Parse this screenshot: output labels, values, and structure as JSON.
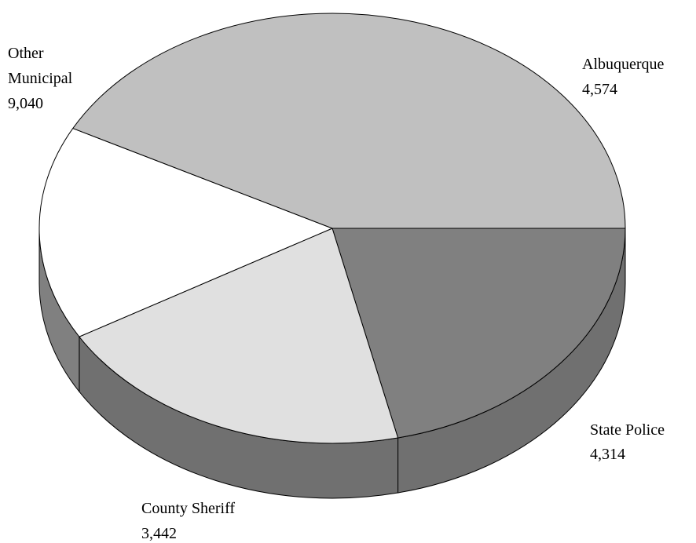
{
  "chart_data": {
    "type": "pie",
    "title": "",
    "slices": [
      {
        "label": "Albuquerque",
        "value": 4574,
        "display_value": "4,574",
        "color": "#808080",
        "side_color": "#707070"
      },
      {
        "label": "State Police",
        "value": 4314,
        "display_value": "4,314",
        "color": "#e0e0e0",
        "side_color": "#707070"
      },
      {
        "label": "County Sheriff",
        "value": 3442,
        "display_value": "3,442",
        "color": "#ffffff",
        "side_color": "#808080"
      },
      {
        "label": "Other Municipal",
        "value": 9040,
        "display_value": "9,040",
        "color": "#c0c0c0",
        "side_color": "#5a5a5a"
      }
    ]
  },
  "labels": {
    "albuquerque": {
      "name": "Albuquerque",
      "value": "4,574"
    },
    "state_police": {
      "name": "State Police",
      "value": "4,314"
    },
    "county_sheriff": {
      "name": "County Sheriff",
      "value": "3,442"
    },
    "other_municipal": {
      "line1": "Other",
      "line2": "Municipal",
      "value": "9,040"
    }
  }
}
